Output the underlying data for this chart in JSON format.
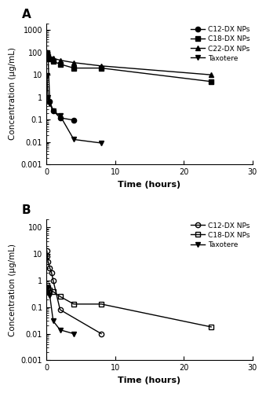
{
  "panel_A": {
    "label": "A",
    "C12_x": [
      0.083,
      0.25,
      0.5,
      1.0,
      2.0,
      4.0
    ],
    "C12_y": [
      100,
      65,
      0.65,
      0.25,
      0.12,
      0.095
    ],
    "C18_x": [
      0.083,
      0.25,
      0.5,
      1.0,
      2.0,
      4.0,
      8.0,
      24.0
    ],
    "C18_y": [
      100,
      65,
      50,
      40,
      30,
      20,
      20,
      5
    ],
    "C22_x": [
      0.083,
      0.25,
      0.5,
      1.0,
      2.0,
      4.0,
      8.0,
      24.0
    ],
    "C22_y": [
      100,
      75,
      60,
      55,
      45,
      35,
      25,
      10
    ],
    "Tax_x": [
      0.083,
      0.25,
      0.5,
      1.0,
      2.0,
      4.0,
      8.0
    ],
    "Tax_y": [
      9.0,
      1.0,
      0.5,
      0.25,
      0.15,
      0.013,
      0.009
    ],
    "ylim_low": 0.001,
    "ylim_high": 2000,
    "yticks": [
      0.001,
      0.01,
      0.1,
      1,
      10,
      100,
      1000
    ],
    "ytick_labels": [
      "0.001",
      "0.01",
      "0.1",
      "1",
      "10",
      "100",
      "1000"
    ],
    "xlim": [
      0,
      30
    ],
    "xticks": [
      0,
      10,
      20,
      30
    ],
    "ylabel": "Concentration (μg/mL)",
    "xlabel": "Time (hours)",
    "legend_labels": [
      "C12-DX NPs",
      "C18-DX NPs",
      "C22-DX NPs",
      "Taxotere"
    ]
  },
  "panel_B": {
    "label": "B",
    "C12_x": [
      0.083,
      0.167,
      0.25,
      0.5,
      0.75,
      1.0,
      2.0,
      8.0
    ],
    "C12_y": [
      13.0,
      8.0,
      5.0,
      3.0,
      2.0,
      1.0,
      0.08,
      0.01
    ],
    "C18_x": [
      0.083,
      0.25,
      0.5,
      1.0,
      2.0,
      4.0,
      8.0,
      24.0
    ],
    "C18_y": [
      0.65,
      0.55,
      0.45,
      0.38,
      0.25,
      0.13,
      0.13,
      0.018
    ],
    "Tax_x": [
      0.083,
      0.25,
      0.5,
      1.0,
      2.0,
      4.0
    ],
    "Tax_y": [
      0.5,
      0.35,
      0.28,
      0.03,
      0.014,
      0.01
    ],
    "ylim_low": 0.001,
    "ylim_high": 200,
    "yticks": [
      0.001,
      0.01,
      0.1,
      1,
      10,
      100
    ],
    "ytick_labels": [
      "0.001",
      "0.01",
      "0.1",
      "1",
      "10",
      "100"
    ],
    "xlim": [
      0,
      30
    ],
    "xticks": [
      0,
      10,
      20,
      30
    ],
    "ylabel": "Concentration (μg/mL)",
    "xlabel": "Time (hours)",
    "legend_labels": [
      "C12-DX NPs",
      "C18-DX NPs",
      "Taxotere"
    ]
  },
  "line_color": "#000000",
  "marker_size": 4.5,
  "line_width": 1.0
}
